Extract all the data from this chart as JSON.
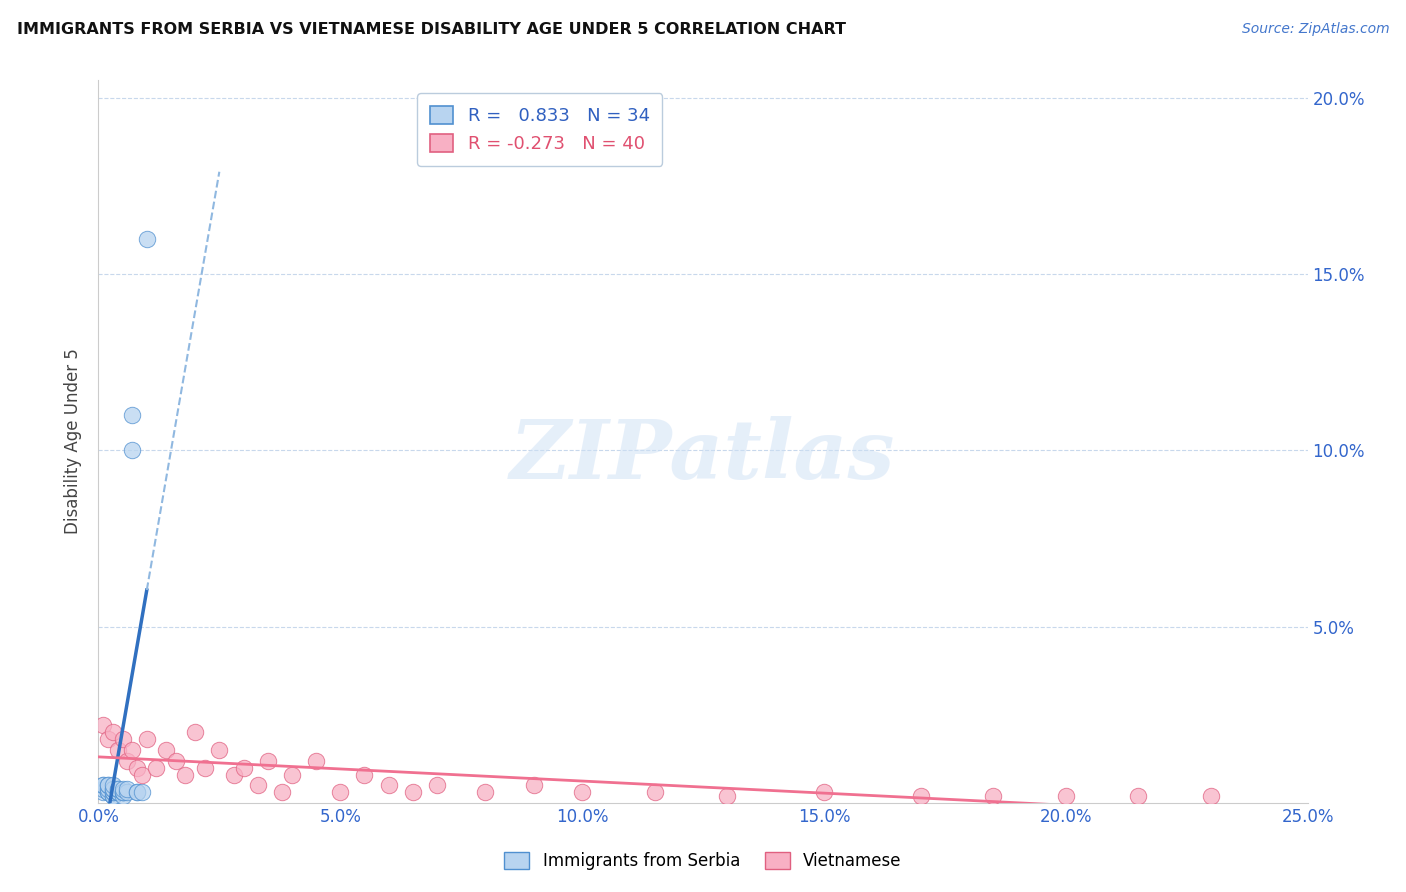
{
  "title": "IMMIGRANTS FROM SERBIA VS VIETNAMESE DISABILITY AGE UNDER 5 CORRELATION CHART",
  "source": "Source: ZipAtlas.com",
  "ylabel": "Disability Age Under 5",
  "xlim": [
    0.0,
    0.25
  ],
  "ylim": [
    0.0,
    0.205
  ],
  "xtick_vals": [
    0.0,
    0.05,
    0.1,
    0.15,
    0.2,
    0.25
  ],
  "xtick_labels": [
    "0.0%",
    "5.0%",
    "10.0%",
    "15.0%",
    "20.0%",
    "25.0%"
  ],
  "ytick_vals": [
    0.05,
    0.1,
    0.15,
    0.2
  ],
  "ytick_labels_right": [
    "5.0%",
    "10.0%",
    "15.0%",
    "20.0%"
  ],
  "serbia_R": 0.833,
  "serbia_N": 34,
  "vietnamese_R": -0.273,
  "vietnamese_N": 40,
  "serbia_color": "#b8d4f0",
  "serbia_edge_color": "#5090d0",
  "vietnamese_color": "#f8b0c4",
  "vietnamese_edge_color": "#e06080",
  "serbia_line_color": "#3070c0",
  "vietnamese_line_color": "#f07090",
  "legend_serbia_label": "Immigrants from Serbia",
  "legend_vietnamese_label": "Vietnamese",
  "watermark_text": "ZIPatlas",
  "serbia_x": [
    0.001,
    0.001,
    0.001,
    0.001,
    0.002,
    0.002,
    0.002,
    0.002,
    0.002,
    0.003,
    0.003,
    0.003,
    0.003,
    0.003,
    0.003,
    0.003,
    0.004,
    0.004,
    0.004,
    0.004,
    0.004,
    0.005,
    0.005,
    0.005,
    0.005,
    0.005,
    0.006,
    0.006,
    0.007,
    0.007,
    0.008,
    0.008,
    0.009,
    0.01
  ],
  "serbia_y": [
    0.003,
    0.004,
    0.005,
    0.005,
    0.003,
    0.003,
    0.004,
    0.005,
    0.005,
    0.002,
    0.002,
    0.003,
    0.003,
    0.004,
    0.004,
    0.005,
    0.003,
    0.003,
    0.003,
    0.004,
    0.004,
    0.002,
    0.003,
    0.003,
    0.003,
    0.004,
    0.003,
    0.004,
    0.1,
    0.11,
    0.003,
    0.003,
    0.003,
    0.16
  ],
  "vietnamese_x": [
    0.001,
    0.002,
    0.003,
    0.004,
    0.005,
    0.006,
    0.007,
    0.008,
    0.009,
    0.01,
    0.012,
    0.014,
    0.016,
    0.018,
    0.02,
    0.022,
    0.025,
    0.028,
    0.03,
    0.033,
    0.035,
    0.038,
    0.04,
    0.045,
    0.05,
    0.055,
    0.06,
    0.065,
    0.07,
    0.08,
    0.09,
    0.1,
    0.115,
    0.13,
    0.15,
    0.17,
    0.185,
    0.2,
    0.215,
    0.23
  ],
  "vietnamese_y": [
    0.022,
    0.018,
    0.02,
    0.015,
    0.018,
    0.012,
    0.015,
    0.01,
    0.008,
    0.018,
    0.01,
    0.015,
    0.012,
    0.008,
    0.02,
    0.01,
    0.015,
    0.008,
    0.01,
    0.005,
    0.012,
    0.003,
    0.008,
    0.012,
    0.003,
    0.008,
    0.005,
    0.003,
    0.005,
    0.003,
    0.005,
    0.003,
    0.003,
    0.002,
    0.003,
    0.002,
    0.002,
    0.002,
    0.002,
    0.002
  ]
}
